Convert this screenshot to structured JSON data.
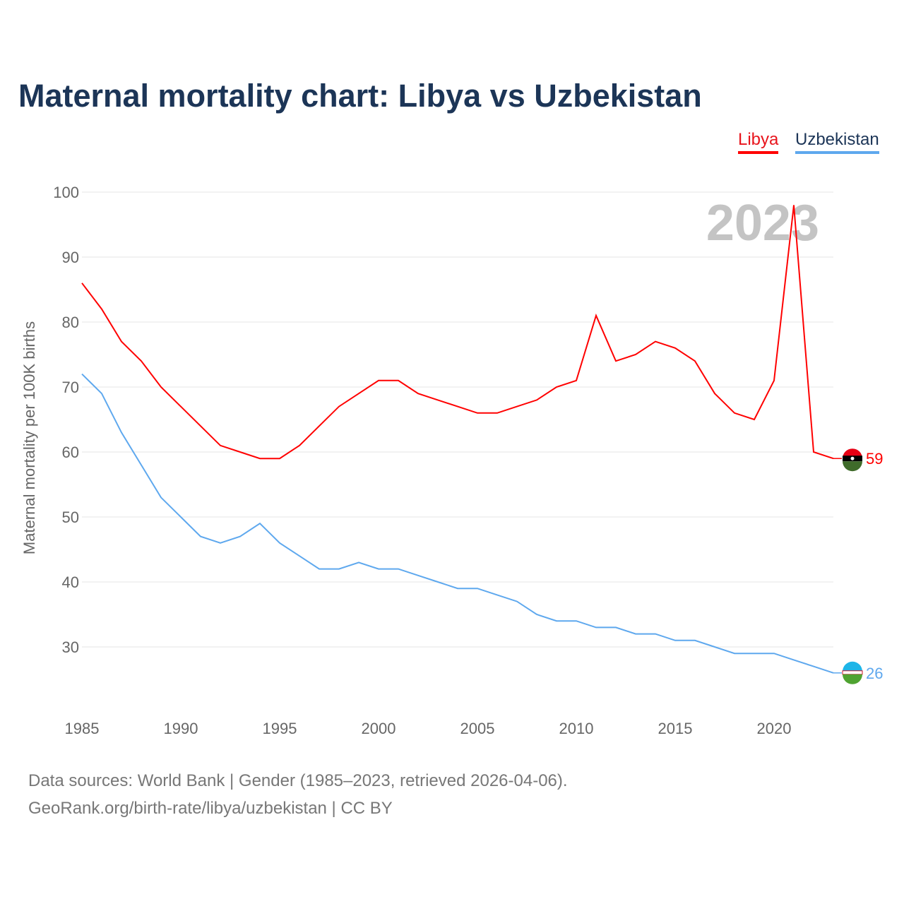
{
  "title": "Maternal mortality chart: Libya vs Uzbekistan",
  "footer": {
    "line1": "Data sources: World Bank | Gender (1985–2023, retrieved 2026-04-06).",
    "line2": "GeoRank.org/birth-rate/libya/uzbekistan | CC BY"
  },
  "chart_data": {
    "type": "line",
    "title": "Maternal mortality chart: Libya vs Uzbekistan",
    "ylabel": "Maternal mortality per 100K births",
    "xlabel": "",
    "year_watermark": "2023",
    "xlim": [
      1985,
      2023
    ],
    "ylim": [
      20,
      100
    ],
    "xticks": [
      1985,
      1990,
      1995,
      2000,
      2005,
      2010,
      2015,
      2020
    ],
    "yticks": [
      30,
      40,
      50,
      60,
      70,
      80,
      90,
      100
    ],
    "legend": "top-right",
    "x": [
      1985,
      1986,
      1987,
      1988,
      1989,
      1990,
      1991,
      1992,
      1993,
      1994,
      1995,
      1996,
      1997,
      1998,
      1999,
      2000,
      2001,
      2002,
      2003,
      2004,
      2005,
      2006,
      2007,
      2008,
      2009,
      2010,
      2011,
      2012,
      2013,
      2014,
      2015,
      2016,
      2017,
      2018,
      2019,
      2020,
      2021,
      2022,
      2023
    ],
    "series": [
      {
        "name": "Libya",
        "color": "#ff0000",
        "end_label": "59",
        "values": [
          86,
          82,
          77,
          74,
          70,
          67,
          64,
          61,
          60,
          59,
          59,
          61,
          64,
          67,
          69,
          71,
          71,
          69,
          68,
          67,
          66,
          66,
          67,
          68,
          70,
          71,
          81,
          74,
          75,
          77,
          76,
          74,
          69,
          66,
          65,
          71,
          98,
          60,
          59
        ]
      },
      {
        "name": "Uzbekistan",
        "color": "#5ea8ee",
        "end_label": "26",
        "values": [
          72,
          69,
          63,
          58,
          53,
          50,
          47,
          46,
          47,
          49,
          46,
          44,
          42,
          42,
          43,
          42,
          42,
          41,
          40,
          39,
          39,
          38,
          37,
          35,
          34,
          34,
          33,
          33,
          32,
          32,
          31,
          31,
          30,
          29,
          29,
          29,
          28,
          27,
          26
        ]
      }
    ]
  }
}
